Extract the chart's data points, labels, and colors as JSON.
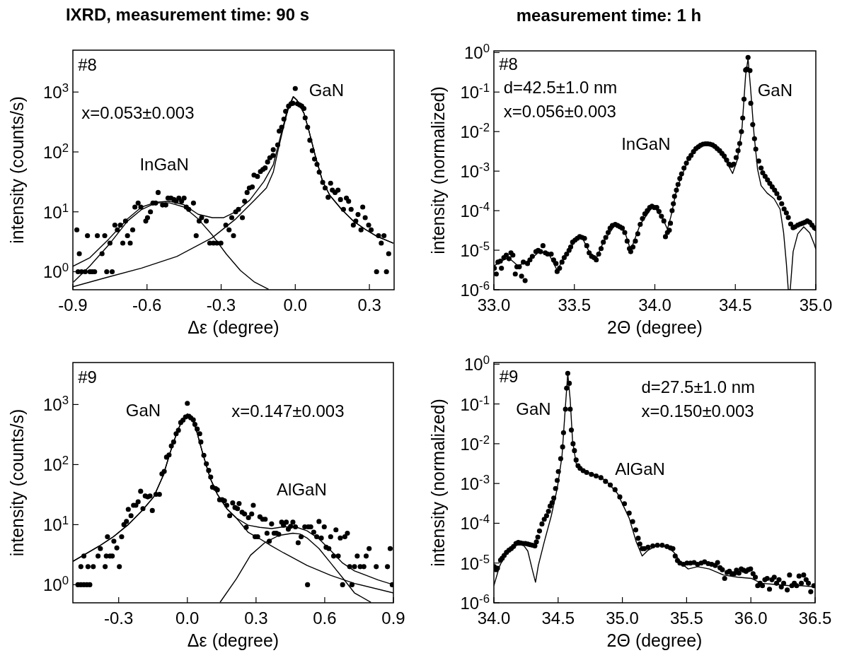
{
  "chart_data": [
    {
      "type": "scatter",
      "title": "IXRD, measurement time: 90 s",
      "xlabel": "Δε (degree)",
      "ylabel": "intensity (counts/s)",
      "log": true,
      "xlim": [
        -0.9,
        0.4
      ],
      "xticks": [
        -0.9,
        -0.6,
        -0.3,
        {
          "value": 0,
          "label": "0.0"
        },
        0.3
      ],
      "ylim": [
        0.5,
        5000
      ],
      "yticks": [
        {
          "value": 1,
          "label": "10$^{0}$"
        },
        {
          "value": 10,
          "label": "10$^{1}$"
        },
        {
          "value": 100,
          "label": "10$^{2}$"
        },
        {
          "value": 1000,
          "label": "10$^{3}$"
        }
      ],
      "annotations": [
        "#8",
        "x=0.053±0.003",
        "InGaN",
        "GaN"
      ],
      "series": [
        {
          "marker": "circle",
          "color": "#000000",
          "x": [
            -0.884,
            -0.874,
            -0.879,
            -0.865,
            -0.85,
            -0.841,
            -0.831,
            -0.822,
            -0.812,
            -0.801,
            -0.782,
            -0.771,
            -0.763,
            -0.75,
            -0.741,
            -0.73,
            -0.72,
            -0.708,
            -0.698,
            -0.687,
            -0.679,
            -0.668,
            -0.658,
            -0.649,
            -0.636,
            -0.625,
            -0.605,
            -0.598,
            -0.586,
            -0.576,
            -0.565,
            -0.555,
            -0.537,
            -0.524,
            -0.515,
            -0.503,
            -0.491,
            -0.482,
            -0.471,
            -0.46,
            -0.45,
            -0.441,
            -0.431,
            -0.412,
            -0.401,
            -0.389,
            -0.379,
            -0.36,
            -0.346,
            -0.331,
            -0.317,
            -0.301,
            -0.281,
            -0.268,
            -0.25,
            -0.257,
            -0.23,
            -0.241,
            -0.214,
            -0.205,
            -0.195,
            -0.186,
            -0.174,
            -0.167,
            -0.153,
            -0.141,
            -0.131,
            -0.122,
            -0.112,
            -0.103,
            -0.09,
            -0.089,
            -0.071,
            -0.065,
            -0.055,
            -0.046,
            -0.039,
            -0.027,
            -0.017,
            -0.01,
            0,
            0.009,
            0.018,
            0.026,
            0.035,
            0.04,
            0.05,
            0.059,
            0.069,
            0.078,
            0.088,
            0.097,
            0.111,
            0.121,
            0.133,
            0.143,
            0.15,
            0.161,
            0.173,
            0.183,
            0.195,
            0.207,
            0.216,
            0.226,
            0.235,
            0.245,
            0.254,
            0.266,
            0.273,
            0.283,
            0.297,
            0.307,
            0.329,
            0.337,
            0.348,
            0.359,
            0.369,
            0.378
          ],
          "values": [
            5,
            2,
            1,
            1,
            1,
            4,
            1,
            1,
            1,
            4,
            2,
            4,
            1,
            3,
            1,
            6,
            5,
            6,
            3,
            7,
            4,
            3,
            5,
            12,
            14,
            12,
            7,
            8,
            10,
            14,
            14,
            21,
            13,
            13,
            17,
            17,
            16,
            15,
            17,
            15,
            17,
            12,
            11,
            14,
            4,
            7,
            8,
            7,
            3,
            3,
            3,
            3,
            6,
            5,
            4,
            8,
            11,
            10,
            8,
            15,
            21,
            25,
            26,
            41,
            39,
            47,
            51,
            54,
            68,
            80,
            87,
            109,
            131,
            223,
            258,
            354,
            476,
            582,
            637,
            649,
            1145,
            637,
            608,
            582,
            531,
            371,
            258,
            157,
            105,
            76,
            62,
            46,
            31,
            25,
            17.5,
            30,
            23,
            21,
            23,
            16,
            11,
            17,
            15,
            11,
            6,
            7,
            9,
            5,
            12,
            8,
            6,
            5,
            1,
            4,
            3,
            4,
            1,
            2
          ]
        },
        {
          "type": "line",
          "color": "#000000",
          "x": [
            -0.9,
            -0.831,
            -0.755,
            -0.679,
            -0.622,
            -0.565,
            -0.508,
            -0.45,
            -0.393,
            -0.336,
            -0.289,
            -0.241,
            -0.184,
            -0.127,
            -0.089,
            -0.07,
            -0.05,
            -0.031,
            -0.008,
            0.007,
            0.035,
            0.054,
            0.083,
            0.111,
            0.14,
            0.188,
            0.235,
            0.283,
            0.33,
            0.397
          ],
          "values": [
            1.23,
            1.72,
            3.5,
            7.6,
            12,
            14.4,
            15,
            13.1,
            9.1,
            8,
            8,
            10,
            15.7,
            32,
            61,
            125,
            258,
            531,
            835,
            730,
            444,
            236,
            80,
            32,
            18.8,
            10.9,
            7,
            5.1,
            3.9,
            3.0
          ]
        },
        {
          "type": "line",
          "color": "#000000",
          "x": [
            -0.898,
            -0.831,
            -0.755,
            -0.679,
            -0.622,
            -0.565,
            -0.508,
            -0.45,
            -0.393,
            -0.336,
            -0.279,
            -0.222,
            -0.165,
            -0.108
          ],
          "values": [
            0.67,
            1.25,
            2.8,
            7,
            10.9,
            14.1,
            14.1,
            12,
            7.6,
            4.1,
            1.97,
            1.05,
            0.67,
            0.51
          ]
        },
        {
          "type": "line",
          "color": "#000000",
          "x": [
            -0.9,
            -0.765,
            -0.622,
            -0.479,
            -0.336,
            -0.241,
            -0.165,
            -0.117,
            -0.089,
            -0.07,
            -0.05,
            -0.031,
            -0.008,
            0.007,
            0.035,
            0.054,
            0.083,
            0.111,
            0.14,
            0.188,
            0.235,
            0.283,
            0.33,
            0.397
          ],
          "values": [
            0.56,
            0.8,
            1.15,
            1.8,
            3.7,
            7.6,
            15.7,
            25,
            46,
            105,
            236,
            485,
            835,
            730,
            444,
            236,
            80,
            32,
            18.8,
            10.9,
            7,
            5.1,
            3.9,
            3.0
          ]
        }
      ]
    },
    {
      "type": "scatter",
      "title": "measurement time: 1 h",
      "xlabel": "2Θ (degree)",
      "ylabel": "intensity (normalized)",
      "log": true,
      "xlim": [
        33,
        35
      ],
      "xticks": [
        {
          "value": 33,
          "label": "33.0"
        },
        33.5,
        {
          "value": 34,
          "label": "34.0"
        },
        34.5,
        {
          "value": 35,
          "label": "35.0"
        }
      ],
      "ylim": [
        1e-06,
        1.1
      ],
      "yticks": [
        {
          "value": 1e-06,
          "label": "10$^{-6}$"
        },
        {
          "value": 1e-05,
          "label": "10$^{-5}$"
        },
        {
          "value": 0.0001,
          "label": "10$^{-4}$"
        },
        {
          "value": 0.001,
          "label": "10$^{-3}$"
        },
        {
          "value": 0.01,
          "label": "10$^{-2}$"
        },
        {
          "value": 0.1,
          "label": "10$^{-1}$"
        },
        {
          "value": 1,
          "label": "10$^{0}$"
        }
      ],
      "annotations": [
        "#8",
        "d=42.5±1.0 nm",
        "x=0.056±0.003",
        "InGaN",
        "GaN"
      ],
      "series": [
        {
          "marker": "circle",
          "color": "#000000",
          "x": [
            33.003,
            33.015,
            33.025,
            33.04,
            33.047,
            33.062,
            33.077,
            33.094,
            33.106,
            33.118,
            33.133,
            33.143,
            33.158,
            33.172,
            33.183,
            33.194,
            33.209,
            33.224,
            33.239,
            33.261,
            33.275,
            33.29,
            33.305,
            33.32,
            33.334,
            33.356,
            33.371,
            33.386,
            33.393,
            33.408,
            33.423,
            33.437,
            33.452,
            33.467,
            33.477,
            33.489,
            33.504,
            33.518,
            33.533,
            33.548,
            33.563,
            33.577,
            33.592,
            33.607,
            33.622,
            33.636,
            33.651,
            33.666,
            33.68,
            33.695,
            33.71,
            33.722,
            33.736,
            33.754,
            33.769,
            33.784,
            33.798,
            33.813,
            33.828,
            33.842,
            33.85,
            33.864,
            33.879,
            33.894,
            33.909,
            33.923,
            33.938,
            33.953,
            33.968,
            33.982,
            33.997,
            34.012,
            34.026,
            34.041,
            34.056,
            34.066,
            34.078,
            34.09,
            34.097,
            34.107,
            34.115,
            34.122,
            34.134,
            34.144,
            34.155,
            34.166,
            34.181,
            34.196,
            34.211,
            34.225,
            34.24,
            34.255,
            34.27,
            34.284,
            34.299,
            34.314,
            34.328,
            34.343,
            34.358,
            34.373,
            34.387,
            34.402,
            34.417,
            34.431,
            34.446,
            34.461,
            34.476,
            34.49,
            34.505,
            34.517,
            34.527,
            34.538,
            34.546,
            34.554,
            34.564,
            34.571,
            34.579,
            34.591,
            34.596,
            34.608,
            34.619,
            34.627,
            34.645,
            34.66,
            34.67,
            34.685,
            34.7,
            34.714,
            34.729,
            34.744,
            34.758,
            34.773,
            34.788,
            34.803,
            34.817,
            34.829,
            34.844,
            34.859,
            34.87,
            34.888,
            34.903,
            34.918,
            34.932,
            34.947,
            34.962,
            34.976,
            34.991,
            35.0
          ],
          "values": [
            3.5e-06,
            2.5e-06,
            5e-06,
            5.3e-06,
            3.5e-06,
            6.5e-06,
            7.5e-06,
            6.1e-06,
            8.6e-06,
            7.5e-06,
            2.5e-06,
            3.8e-06,
            3.8e-06,
            2.2e-06,
            5e-06,
            1.7e-06,
            4.6e-06,
            5.7e-06,
            7e-06,
            9.2e-06,
            9.9e-06,
            9.2e-06,
            1.3e-05,
            8.6e-06,
            8e-06,
            8e-06,
            5.7e-06,
            4.6e-06,
            2.9e-06,
            3.5e-06,
            5e-06,
            6.5e-06,
            8e-06,
            9.9e-06,
            1.2e-05,
            1.6e-05,
            1.8e-05,
            2e-05,
            2.2e-05,
            2.1e-05,
            2e-05,
            1.3e-05,
            8.6e-06,
            7e-06,
            6.5e-06,
            5.7e-06,
            8e-06,
            1.1e-05,
            1.6e-05,
            2.1e-05,
            2.8e-05,
            3.6e-05,
            4.2e-05,
            4.5e-05,
            4.2e-05,
            3.9e-05,
            3.6e-05,
            2.8e-05,
            1.7e-05,
            1.1e-05,
            9.2e-06,
            1.2e-05,
            1.7e-05,
            2.6e-05,
            4.5e-05,
            6.3e-05,
            8.3e-05,
            0.0001,
            0.00012,
            0.00013,
            0.00012,
            0.00012,
            9.5e-05,
            7.2e-05,
            5.5e-05,
            2.2e-05,
            2.8e-05,
            3.2e-05,
            4.8e-05,
            0.0001,
            0.00015,
            0.00023,
            0.00033,
            0.00046,
            0.00065,
            0.00085,
            0.0012,
            0.0016,
            0.0021,
            0.0025,
            0.0031,
            0.0037,
            0.0041,
            0.0045,
            0.0048,
            0.0049,
            0.0049,
            0.0048,
            0.0046,
            0.0042,
            0.0037,
            0.0033,
            0.0028,
            0.0024,
            0.0019,
            0.0015,
            0.0014,
            0.0015,
            0.0022,
            0.0033,
            0.005,
            0.01,
            0.022,
            0.066,
            0.36,
            0.38,
            0.75,
            0.35,
            0.052,
            0.015,
            0.0066,
            0.0036,
            0.0018,
            0.0012,
            0.00091,
            0.00074,
            0.0006,
            0.00049,
            0.0004,
            0.00033,
            0.00027,
            0.00021,
            0.00015,
            0.00011,
            8.8e-05,
            6.7e-05,
            4.6e-05,
            3.7e-05,
            3.9e-05,
            4.3e-05,
            4.6e-05,
            4.8e-05,
            5.1e-05,
            5.5e-05,
            5.1e-05,
            4.3e-05,
            3.7e-05,
            3.5e-05
          ]
        },
        {
          "type": "line",
          "color": "#000000",
          "x": [
            33.0,
            33.047,
            33.091,
            33.15,
            33.18,
            33.224,
            33.283,
            33.342,
            33.393,
            33.445,
            33.518,
            33.548,
            33.592,
            33.636,
            33.68,
            33.754,
            33.813,
            33.85,
            33.909,
            33.99,
            34.049,
            34.078,
            34.1,
            34.137,
            34.211,
            34.284,
            34.328,
            34.387,
            34.446,
            34.483,
            34.512,
            34.542,
            34.564,
            34.579,
            34.594,
            34.616,
            34.638,
            34.66,
            34.697,
            34.741,
            34.778,
            34.8,
            34.817,
            34.829,
            34.841,
            34.859,
            34.888,
            34.925,
            34.962,
            34.991,
            35.0
          ],
          "values": [
            4e-06,
            5.3e-06,
            6.5e-06,
            4e-06,
            4.6e-06,
            5.7e-06,
            9.2e-06,
            8e-06,
            3.1e-06,
            7.5e-06,
            2e-05,
            2.1e-05,
            9.2e-06,
            6.1e-06,
            1.6e-05,
            4.5e-05,
            2.95e-05,
            9.9e-06,
            4.5e-05,
            0.000133,
            6.3e-05,
            3.4e-05,
            7.2e-05,
            0.00037,
            0.0021,
            0.0045,
            0.0049,
            0.0037,
            0.00168,
            0.00087,
            0.00193,
            0.013,
            0.27,
            0.7,
            0.135,
            0.0087,
            0.00112,
            0.00043,
            0.00028,
            0.0002,
            0.000109,
            2.75e-05,
            4.6e-06,
            1e-06,
            1e-06,
            9.2e-06,
            2.6e-05,
            3.9e-05,
            2.75e-05,
            1.39e-05,
            1.06e-05
          ]
        }
      ]
    },
    {
      "type": "scatter",
      "xlabel": "Δε (degree)",
      "ylabel": "intensity (counts/s)",
      "log": true,
      "xlim": [
        -0.5,
        0.9
      ],
      "xticks": [
        -0.3,
        {
          "value": 0,
          "label": "0.0"
        },
        0.3,
        0.6,
        0.9
      ],
      "ylim": [
        0.5,
        5000
      ],
      "yticks": [
        {
          "value": 1,
          "label": "10$^{0}$"
        },
        {
          "value": 10,
          "label": "10$^{1}$"
        },
        {
          "value": 100,
          "label": "10$^{2}$"
        },
        {
          "value": 1000,
          "label": "10$^{3}$"
        }
      ],
      "annotations": [
        "#9",
        "GaN",
        "x=0.147±0.003",
        "AlGaN"
      ],
      "series": [
        {
          "marker": "circle",
          "color": "#000000",
          "x": [
            -0.478,
            -0.465,
            -0.452,
            -0.439,
            -0.426,
            -0.465,
            -0.452,
            -0.434,
            -0.411,
            -0.39,
            -0.38,
            -0.359,
            -0.349,
            -0.354,
            -0.338,
            -0.328,
            -0.321,
            -0.308,
            -0.297,
            -0.287,
            -0.277,
            -0.266,
            -0.258,
            -0.246,
            -0.235,
            -0.225,
            -0.215,
            -0.204,
            -0.194,
            -0.184,
            -0.173,
            -0.163,
            -0.153,
            -0.137,
            -0.122,
            -0.111,
            -0.101,
            -0.091,
            -0.08,
            -0.07,
            -0.06,
            -0.049,
            -0.039,
            -0.029,
            -0.019,
            -0.008,
            0,
            0.007,
            0.015,
            0.026,
            0.033,
            0.043,
            0.054,
            0.059,
            0.072,
            0.083,
            0.093,
            0.102,
            0.11,
            0.123,
            0.131,
            0.141,
            0.152,
            0.162,
            0.172,
            0.185,
            0.198,
            0.208,
            0.226,
            0.219,
            0.239,
            0.25,
            0.257,
            0.267,
            0.281,
            0.288,
            0.296,
            0.307,
            0.317,
            0.329,
            0.34,
            0.348,
            0.358,
            0.368,
            0.379,
            0.389,
            0.399,
            0.412,
            0.42,
            0.432,
            0.441,
            0.451,
            0.461,
            0.472,
            0.484,
            0.497,
            0.513,
            0.525,
            0.528,
            0.539,
            0.552,
            0.565,
            0.575,
            0.585,
            0.598,
            0.606,
            0.618,
            0.626,
            0.639,
            0.649,
            0.659,
            0.668,
            0.678,
            0.688,
            0.699,
            0.709,
            0.719,
            0.73,
            0.742,
            0.755,
            0.771,
            0.781,
            0.794,
            0.825,
            0.874,
            0.886,
            0.895
          ],
          "values": [
            1,
            1,
            1,
            1,
            1,
            2,
            3,
            2,
            2,
            3,
            4,
            2,
            6.3,
            3,
            3,
            3,
            5.3,
            4.1,
            2,
            6.3,
            10,
            11.3,
            18,
            14.1,
            21,
            21,
            24,
            36,
            18.5,
            30,
            29,
            30,
            17.2,
            32,
            32,
            70,
            77,
            133,
            145,
            204,
            238,
            326,
            372,
            501,
            548,
            621,
            1045,
            638,
            600,
            557,
            467,
            390,
            326,
            238,
            143,
            103,
            80,
            62,
            42,
            40,
            38,
            26,
            26,
            25,
            21,
            14.1,
            23,
            19.3,
            22.5,
            18.5,
            16.1,
            15.1,
            9,
            13.1,
            15.1,
            21,
            6.3,
            6.3,
            13.5,
            12.3,
            12.3,
            7.2,
            5.3,
            10.3,
            7.2,
            7.2,
            6.9,
            11,
            9.8,
            11,
            8.4,
            9.4,
            11,
            9.2,
            5,
            6.3,
            9.2,
            1,
            9.2,
            9.2,
            7.5,
            6.3,
            11.3,
            6,
            9.2,
            4.2,
            4,
            6.3,
            3,
            8.2,
            3,
            6,
            1,
            6.3,
            7.2,
            2,
            1,
            2,
            3,
            2,
            2,
            3,
            4,
            2,
            2,
            4,
            1
          ]
        },
        {
          "type": "line",
          "color": "#000000",
          "x": [
            -0.5,
            -0.447,
            -0.385,
            -0.323,
            -0.261,
            -0.199,
            -0.147,
            -0.106,
            -0.075,
            -0.044,
            -0.019,
            0,
            0.018,
            0.038,
            0.069,
            0.1,
            0.131,
            0.172,
            0.214,
            0.265,
            0.317,
            0.368,
            0.42,
            0.472,
            0.523,
            0.575,
            0.626,
            0.678,
            0.73,
            0.781,
            0.833,
            0.9
          ],
          "values": [
            2.45,
            3.2,
            4.4,
            6.3,
            9.8,
            16.9,
            29,
            65,
            159,
            356,
            583,
            698,
            610,
            390,
            145,
            59,
            32,
            18.5,
            12.9,
            9.8,
            9,
            8.6,
            9.2,
            9.2,
            7.9,
            5.8,
            3.7,
            2.3,
            1.7,
            1.43,
            1.2,
            1.0
          ]
        },
        {
          "type": "line",
          "color": "#000000",
          "x": [
            -0.5,
            -0.447,
            -0.385,
            -0.323,
            -0.261,
            -0.199,
            -0.147,
            -0.106,
            -0.075,
            -0.044,
            -0.019,
            0,
            0.018,
            0.038,
            0.069,
            0.1,
            0.131,
            0.172,
            0.214,
            0.265,
            0.317,
            0.368,
            0.42,
            0.523,
            0.626,
            0.73,
            0.9
          ],
          "values": [
            2.45,
            3.2,
            4.4,
            6.3,
            9.8,
            16.9,
            29,
            65,
            159,
            356,
            583,
            698,
            610,
            390,
            145,
            59,
            32,
            18.5,
            12.9,
            7.5,
            5.8,
            4.4,
            3.4,
            2.1,
            1.43,
            1.05,
            0.73
          ]
        },
        {
          "type": "line",
          "color": "#000000",
          "x": [
            0.143,
            0.214,
            0.276,
            0.338,
            0.399,
            0.461,
            0.492,
            0.523,
            0.575,
            0.626,
            0.678,
            0.73,
            0.802
          ],
          "values": [
            0.51,
            1.25,
            3.1,
            5,
            6.6,
            7.2,
            7.0,
            6,
            4,
            2.3,
            1.31,
            0.73,
            0.51
          ]
        }
      ]
    },
    {
      "type": "scatter",
      "xlabel": "2Θ (degree)",
      "ylabel": "intensity (normalized)",
      "log": true,
      "xlim": [
        34,
        36.5
      ],
      "xticks": [
        {
          "value": 34,
          "label": "34.0"
        },
        34.5,
        {
          "value": 35,
          "label": "35.0"
        },
        35.5,
        {
          "value": 36,
          "label": "36.0"
        },
        36.5
      ],
      "ylim": [
        1e-06,
        1.1
      ],
      "yticks": [
        {
          "value": 1e-06,
          "label": "10$^{-6}$"
        },
        {
          "value": 1e-05,
          "label": "10$^{-5}$"
        },
        {
          "value": 0.0001,
          "label": "10$^{-4}$"
        },
        {
          "value": 0.001,
          "label": "10$^{-3}$"
        },
        {
          "value": 0.01,
          "label": "10$^{-2}$"
        },
        {
          "value": 0.1,
          "label": "10$^{-1}$"
        },
        {
          "value": 1,
          "label": "10$^{0}$"
        }
      ],
      "annotations": [
        "#9",
        "GaN",
        "d=27.5±1.0 nm",
        "x=0.150±0.003",
        "AlGaN"
      ],
      "series": [
        {
          "marker": "circle",
          "color": "#000000",
          "x": [
            34.003,
            34.016,
            34.028,
            34.052,
            34.065,
            34.08,
            34.098,
            34.117,
            34.135,
            34.153,
            34.172,
            34.19,
            34.208,
            34.227,
            34.245,
            34.264,
            34.282,
            34.3,
            34.319,
            34.331,
            34.342,
            34.355,
            34.374,
            34.392,
            34.41,
            34.425,
            34.438,
            34.453,
            34.466,
            34.48,
            34.493,
            34.502,
            34.52,
            34.535,
            34.542,
            34.557,
            34.566,
            34.575,
            34.587,
            34.594,
            34.603,
            34.616,
            34.627,
            34.64,
            34.655,
            34.671,
            34.695,
            34.722,
            34.759,
            34.796,
            34.833,
            34.869,
            34.906,
            34.943,
            34.98,
            35.016,
            35.053,
            35.08,
            35.104,
            35.123,
            35.136,
            35.154,
            35.172,
            35.2,
            35.237,
            35.273,
            35.31,
            35.347,
            35.374,
            35.393,
            35.411,
            35.429,
            35.448,
            35.475,
            35.503,
            35.53,
            35.558,
            35.585,
            35.613,
            35.64,
            35.668,
            35.695,
            35.723,
            35.741,
            35.76,
            35.778,
            35.796,
            35.815,
            35.833,
            35.851,
            35.87,
            35.888,
            35.907,
            35.925,
            35.943,
            35.962,
            35.98,
            35.998,
            36.017,
            36.035,
            36.053,
            36.072,
            36.09,
            36.109,
            36.127,
            36.145,
            36.164,
            36.182,
            36.2,
            36.219,
            36.237,
            36.255,
            36.283,
            36.301,
            36.319,
            36.338,
            36.356,
            36.375,
            36.393,
            36.411,
            36.43,
            36.448,
            36.466,
            36.49
          ],
          "values": [
            8.1e-06,
            6.8e-06,
            7.4e-06,
            1.18e-05,
            1.32e-05,
            1.55e-05,
            1.85e-05,
            2.1e-05,
            2.3e-05,
            2.6e-05,
            3.1e-05,
            3.3e-05,
            3.2e-05,
            3.1e-05,
            3.1e-05,
            3e-05,
            2.9e-05,
            2.8e-05,
            2.7e-05,
            3.4e-05,
            4.5e-05,
            6.4e-05,
            9.6e-05,
            0.000126,
            0.000155,
            0.0002,
            0.00027,
            0.00033,
            0.00043,
            0.00075,
            0.0012,
            0.002,
            0.0042,
            0.0083,
            0.019,
            0.074,
            0.25,
            0.59,
            0.33,
            0.074,
            0.022,
            0.01,
            0.0067,
            0.0039,
            0.0028,
            0.0024,
            0.0021,
            0.0019,
            0.0017,
            0.00155,
            0.0014,
            0.00113,
            0.00092,
            0.0007,
            0.00046,
            0.00031,
            0.00018,
            0.00011,
            6.8e-05,
            4.2e-05,
            3e-05,
            2.3e-05,
            2.3e-05,
            2.5e-05,
            2.7e-05,
            2.8e-05,
            2.8e-05,
            2.6e-05,
            2.4e-05,
            2.3e-05,
            1.5e-05,
            1.15e-05,
            1e-05,
            9.3e-06,
            1e-05,
            1e-05,
            1.03e-05,
            9.3e-06,
            1e-05,
            1.07e-05,
            9.7e-06,
            9.3e-06,
            8.7e-06,
            1.03e-05,
            7.6e-06,
            6.8e-06,
            4.1e-06,
            5.8e-06,
            6.2e-06,
            5.4e-06,
            5.4e-06,
            6.6e-06,
            5.6e-06,
            7.1e-06,
            6.6e-06,
            6.2e-06,
            6.8e-06,
            7.1e-06,
            5.4e-06,
            4.4e-06,
            2.7e-06,
            3.1e-06,
            2.7e-06,
            3.8e-06,
            4.1e-06,
            2.2e-06,
            3.8e-06,
            4.4e-06,
            3.1e-06,
            3.8e-06,
            2.5e-06,
            3.1e-06,
            2.1e-06,
            5e-06,
            2.7e-06,
            3.1e-06,
            2.7e-06,
            4.7e-06,
            3.1e-06,
            5e-06,
            3.8e-06,
            3.1e-06,
            1.9e-06,
            2.7e-06
          ]
        },
        {
          "type": "line",
          "color": "#000000",
          "x": [
            34.0,
            34.043,
            34.098,
            34.172,
            34.227,
            34.264,
            34.3,
            34.324,
            34.346,
            34.392,
            34.447,
            34.493,
            34.53,
            34.554,
            34.575,
            34.594,
            34.612,
            34.64,
            34.686,
            34.777,
            34.869,
            34.961,
            35.053,
            35.108,
            35.154,
            35.2,
            35.273,
            35.347,
            35.402,
            35.457,
            35.512,
            35.585,
            35.677,
            35.787,
            35.897,
            36.007,
            36.081,
            36.191,
            36.301,
            36.393,
            36.5
          ],
          "values": [
            2.7e-06,
            8.1e-06,
            1.99e-05,
            2.8e-05,
            2.9e-05,
            2e-05,
            6.6e-06,
            3.3e-06,
            8.7e-06,
            3.4e-05,
            0.000155,
            0.00075,
            0.0048,
            0.065,
            0.59,
            0.128,
            0.0124,
            0.0032,
            0.0021,
            0.0017,
            0.0012,
            0.00057,
            0.000135,
            3.4e-05,
            1.5e-05,
            2.1e-05,
            2.8e-05,
            2.6e-05,
            1.85e-05,
            1e-05,
            7.1e-06,
            8.1e-06,
            7.1e-06,
            5e-06,
            4.4e-06,
            4.1e-06,
            3.1e-06,
            2.9e-06,
            2.7e-06,
            2.7e-06,
            2.5e-06
          ]
        }
      ]
    }
  ]
}
